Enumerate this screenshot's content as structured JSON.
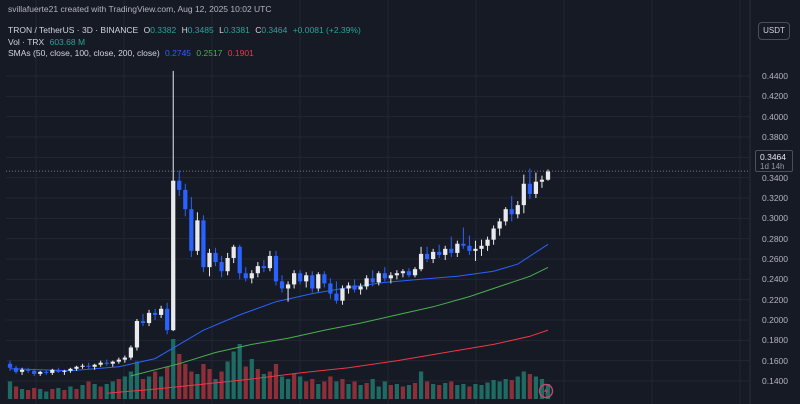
{
  "header": {
    "credit": "svillafuerte21 created with TradingView.com, Aug 12, 2025 10:02 UTC",
    "symbol": "TRON / TetherUS · 3D · BINANCE",
    "open_label": "O",
    "open": "0.3382",
    "high_label": "H",
    "high": "0.3485",
    "low_label": "L",
    "low": "0.3381",
    "close_label": "C",
    "close": "0.3464",
    "change": "+0.0081 (+2.39%)",
    "vol_label": "Vol · TRX",
    "vol_value": "603.68 M",
    "sma_label": "SMAs (50, close, 100, close, 200, close)",
    "sma50_value": "0.2745",
    "sma100_value": "0.2517",
    "sma200_value": "0.1901"
  },
  "currency_label": "USDT",
  "last_price": {
    "value": "0.3464",
    "countdown": "1d 14h"
  },
  "colors": {
    "background": "#161a25",
    "grid": "#232735",
    "text": "#d1d4dc",
    "up": "#26a69a",
    "down": "#ef5350",
    "candle_up": "#e8eaee",
    "candle_down": "#2962ff",
    "sma50": "#2962ff",
    "sma100": "#4caf50",
    "sma200": "#f23645",
    "vol_up": "#1e6b63",
    "vol_down": "#8c2f38"
  },
  "chart_data": {
    "type": "candlestick",
    "y_axis_ticks": [
      "0.4400",
      "0.4200",
      "0.4000",
      "0.3800",
      "0.3600",
      "0.3400",
      "0.3200",
      "0.3000",
      "0.2800",
      "0.2600",
      "0.2400",
      "0.2200",
      "0.2000",
      "0.1800",
      "0.1600",
      "0.1400"
    ],
    "ylim": [
      0.127,
      0.455
    ],
    "grid": true,
    "candles": [
      [
        0.157,
        0.16,
        0.15,
        0.153
      ],
      [
        0.153,
        0.155,
        0.147,
        0.149
      ],
      [
        0.149,
        0.153,
        0.146,
        0.151
      ],
      [
        0.151,
        0.153,
        0.148,
        0.15
      ],
      [
        0.15,
        0.152,
        0.145,
        0.147
      ],
      [
        0.147,
        0.15,
        0.145,
        0.149
      ],
      [
        0.149,
        0.151,
        0.146,
        0.148
      ],
      [
        0.148,
        0.152,
        0.146,
        0.151
      ],
      [
        0.151,
        0.153,
        0.148,
        0.149
      ],
      [
        0.149,
        0.151,
        0.146,
        0.15
      ],
      [
        0.15,
        0.153,
        0.148,
        0.152
      ],
      [
        0.152,
        0.155,
        0.15,
        0.154
      ],
      [
        0.154,
        0.157,
        0.152,
        0.155
      ],
      [
        0.155,
        0.158,
        0.152,
        0.154
      ],
      [
        0.154,
        0.157,
        0.151,
        0.156
      ],
      [
        0.156,
        0.16,
        0.154,
        0.158
      ],
      [
        0.158,
        0.161,
        0.155,
        0.157
      ],
      [
        0.157,
        0.16,
        0.154,
        0.159
      ],
      [
        0.159,
        0.163,
        0.157,
        0.161
      ],
      [
        0.161,
        0.165,
        0.158,
        0.163
      ],
      [
        0.163,
        0.175,
        0.161,
        0.173
      ],
      [
        0.173,
        0.201,
        0.17,
        0.199
      ],
      [
        0.199,
        0.206,
        0.194,
        0.197
      ],
      [
        0.197,
        0.21,
        0.194,
        0.207
      ],
      [
        0.207,
        0.211,
        0.2,
        0.205
      ],
      [
        0.205,
        0.214,
        0.202,
        0.211
      ],
      [
        0.211,
        0.217,
        0.186,
        0.19
      ],
      [
        0.19,
        0.445,
        0.189,
        0.337
      ],
      [
        0.337,
        0.347,
        0.322,
        0.328
      ],
      [
        0.328,
        0.334,
        0.302,
        0.309
      ],
      [
        0.309,
        0.321,
        0.262,
        0.268
      ],
      [
        0.268,
        0.306,
        0.264,
        0.298
      ],
      [
        0.298,
        0.303,
        0.247,
        0.252
      ],
      [
        0.252,
        0.27,
        0.243,
        0.266
      ],
      [
        0.266,
        0.271,
        0.253,
        0.257
      ],
      [
        0.257,
        0.263,
        0.242,
        0.248
      ],
      [
        0.248,
        0.266,
        0.244,
        0.261
      ],
      [
        0.261,
        0.274,
        0.256,
        0.272
      ],
      [
        0.272,
        0.274,
        0.24,
        0.246
      ],
      [
        0.246,
        0.252,
        0.238,
        0.241
      ],
      [
        0.241,
        0.249,
        0.236,
        0.246
      ],
      [
        0.246,
        0.257,
        0.242,
        0.253
      ],
      [
        0.253,
        0.259,
        0.247,
        0.251
      ],
      [
        0.251,
        0.268,
        0.248,
        0.263
      ],
      [
        0.263,
        0.268,
        0.234,
        0.238
      ],
      [
        0.238,
        0.244,
        0.227,
        0.231
      ],
      [
        0.231,
        0.238,
        0.218,
        0.235
      ],
      [
        0.235,
        0.249,
        0.231,
        0.246
      ],
      [
        0.246,
        0.249,
        0.235,
        0.238
      ],
      [
        0.238,
        0.247,
        0.232,
        0.244
      ],
      [
        0.244,
        0.248,
        0.227,
        0.231
      ],
      [
        0.231,
        0.247,
        0.228,
        0.245
      ],
      [
        0.245,
        0.248,
        0.232,
        0.236
      ],
      [
        0.236,
        0.241,
        0.221,
        0.226
      ],
      [
        0.226,
        0.238,
        0.216,
        0.219
      ],
      [
        0.219,
        0.234,
        0.215,
        0.231
      ],
      [
        0.231,
        0.237,
        0.226,
        0.234
      ],
      [
        0.234,
        0.24,
        0.227,
        0.23
      ],
      [
        0.23,
        0.236,
        0.225,
        0.233
      ],
      [
        0.233,
        0.244,
        0.23,
        0.241
      ],
      [
        0.241,
        0.249,
        0.233,
        0.237
      ],
      [
        0.237,
        0.248,
        0.234,
        0.246
      ],
      [
        0.246,
        0.252,
        0.238,
        0.241
      ],
      [
        0.241,
        0.247,
        0.236,
        0.244
      ],
      [
        0.244,
        0.249,
        0.24,
        0.246
      ],
      [
        0.246,
        0.25,
        0.242,
        0.248
      ],
      [
        0.248,
        0.251,
        0.242,
        0.244
      ],
      [
        0.244,
        0.252,
        0.242,
        0.25
      ],
      [
        0.25,
        0.272,
        0.248,
        0.265
      ],
      [
        0.265,
        0.272,
        0.257,
        0.26
      ],
      [
        0.26,
        0.27,
        0.256,
        0.267
      ],
      [
        0.267,
        0.274,
        0.261,
        0.264
      ],
      [
        0.264,
        0.273,
        0.259,
        0.27
      ],
      [
        0.27,
        0.282,
        0.262,
        0.266
      ],
      [
        0.266,
        0.278,
        0.262,
        0.275
      ],
      [
        0.275,
        0.291,
        0.27,
        0.273
      ],
      [
        0.273,
        0.283,
        0.264,
        0.268
      ],
      [
        0.268,
        0.278,
        0.258,
        0.27
      ],
      [
        0.27,
        0.279,
        0.263,
        0.273
      ],
      [
        0.273,
        0.282,
        0.268,
        0.279
      ],
      [
        0.279,
        0.293,
        0.274,
        0.29
      ],
      [
        0.29,
        0.3,
        0.283,
        0.297
      ],
      [
        0.297,
        0.311,
        0.293,
        0.309
      ],
      [
        0.309,
        0.322,
        0.297,
        0.304
      ],
      [
        0.304,
        0.317,
        0.3,
        0.313
      ],
      [
        0.313,
        0.343,
        0.305,
        0.334
      ],
      [
        0.334,
        0.349,
        0.319,
        0.324
      ],
      [
        0.324,
        0.345,
        0.32,
        0.336
      ],
      [
        0.336,
        0.342,
        0.33,
        0.338
      ],
      [
        0.338,
        0.348,
        0.337,
        0.346
      ]
    ],
    "volume": [
      [
        0.35,
        0
      ],
      [
        0.25,
        1
      ],
      [
        0.2,
        0
      ],
      [
        0.18,
        1
      ],
      [
        0.22,
        1
      ],
      [
        0.2,
        0
      ],
      [
        0.15,
        0
      ],
      [
        0.2,
        1
      ],
      [
        0.22,
        0
      ],
      [
        0.18,
        1
      ],
      [
        0.25,
        0
      ],
      [
        0.2,
        1
      ],
      [
        0.28,
        0
      ],
      [
        0.35,
        1
      ],
      [
        0.3,
        0
      ],
      [
        0.25,
        1
      ],
      [
        0.3,
        0
      ],
      [
        0.35,
        0
      ],
      [
        0.4,
        1
      ],
      [
        0.45,
        0
      ],
      [
        0.55,
        0
      ],
      [
        0.75,
        0
      ],
      [
        0.4,
        1
      ],
      [
        0.45,
        0
      ],
      [
        0.55,
        1
      ],
      [
        0.45,
        0
      ],
      [
        0.65,
        1
      ],
      [
        1.2,
        0
      ],
      [
        0.9,
        1
      ],
      [
        0.7,
        1
      ],
      [
        0.55,
        1
      ],
      [
        0.5,
        0
      ],
      [
        0.7,
        1
      ],
      [
        0.6,
        1
      ],
      [
        0.4,
        0
      ],
      [
        0.55,
        1
      ],
      [
        0.75,
        0
      ],
      [
        0.95,
        0
      ],
      [
        1.1,
        0
      ],
      [
        0.65,
        1
      ],
      [
        0.8,
        0
      ],
      [
        0.6,
        1
      ],
      [
        0.5,
        0
      ],
      [
        0.55,
        1
      ],
      [
        0.7,
        1
      ],
      [
        0.45,
        0
      ],
      [
        0.4,
        0
      ],
      [
        0.5,
        1
      ],
      [
        0.45,
        0
      ],
      [
        0.35,
        1
      ],
      [
        0.4,
        1
      ],
      [
        0.3,
        0
      ],
      [
        0.35,
        1
      ],
      [
        0.45,
        1
      ],
      [
        0.35,
        0
      ],
      [
        0.4,
        1
      ],
      [
        0.3,
        0
      ],
      [
        0.35,
        1
      ],
      [
        0.28,
        0
      ],
      [
        0.32,
        1
      ],
      [
        0.4,
        0
      ],
      [
        0.25,
        0
      ],
      [
        0.35,
        0
      ],
      [
        0.28,
        1
      ],
      [
        0.3,
        0
      ],
      [
        0.25,
        1
      ],
      [
        0.28,
        0
      ],
      [
        0.32,
        1
      ],
      [
        0.55,
        0
      ],
      [
        0.35,
        1
      ],
      [
        0.3,
        0
      ],
      [
        0.28,
        1
      ],
      [
        0.32,
        0
      ],
      [
        0.35,
        1
      ],
      [
        0.28,
        0
      ],
      [
        0.3,
        0
      ],
      [
        0.25,
        1
      ],
      [
        0.3,
        0
      ],
      [
        0.28,
        0
      ],
      [
        0.33,
        0
      ],
      [
        0.38,
        0
      ],
      [
        0.35,
        0
      ],
      [
        0.4,
        0
      ],
      [
        0.38,
        1
      ],
      [
        0.45,
        0
      ],
      [
        0.55,
        0
      ],
      [
        0.5,
        1
      ],
      [
        0.45,
        0
      ],
      [
        0.4,
        0
      ],
      [
        0.3,
        0
      ]
    ],
    "sma50": {
      "name": "SMA 50",
      "points": [
        [
          0,
          0.152
        ],
        [
          10,
          0.15
        ],
        [
          18,
          0.154
        ],
        [
          24,
          0.162
        ],
        [
          28,
          0.176
        ],
        [
          32,
          0.19
        ],
        [
          38,
          0.205
        ],
        [
          44,
          0.218
        ],
        [
          50,
          0.226
        ],
        [
          56,
          0.232
        ],
        [
          62,
          0.237
        ],
        [
          68,
          0.24
        ],
        [
          74,
          0.243
        ],
        [
          80,
          0.248
        ],
        [
          84,
          0.255
        ],
        [
          89,
          0.2745
        ]
      ]
    },
    "sma100": {
      "name": "SMA 100",
      "points": [
        [
          20,
          0.145
        ],
        [
          28,
          0.157
        ],
        [
          34,
          0.168
        ],
        [
          40,
          0.176
        ],
        [
          46,
          0.182
        ],
        [
          52,
          0.19
        ],
        [
          58,
          0.197
        ],
        [
          64,
          0.205
        ],
        [
          70,
          0.213
        ],
        [
          76,
          0.223
        ],
        [
          82,
          0.235
        ],
        [
          86,
          0.243
        ],
        [
          89,
          0.2517
        ]
      ]
    },
    "sma200": {
      "name": "SMA 200",
      "points": [
        [
          16,
          0.128
        ],
        [
          24,
          0.132
        ],
        [
          32,
          0.137
        ],
        [
          40,
          0.142
        ],
        [
          48,
          0.148
        ],
        [
          56,
          0.153
        ],
        [
          64,
          0.16
        ],
        [
          72,
          0.168
        ],
        [
          80,
          0.176
        ],
        [
          86,
          0.184
        ],
        [
          89,
          0.1901
        ]
      ]
    },
    "last_price_line": 0.3464
  }
}
